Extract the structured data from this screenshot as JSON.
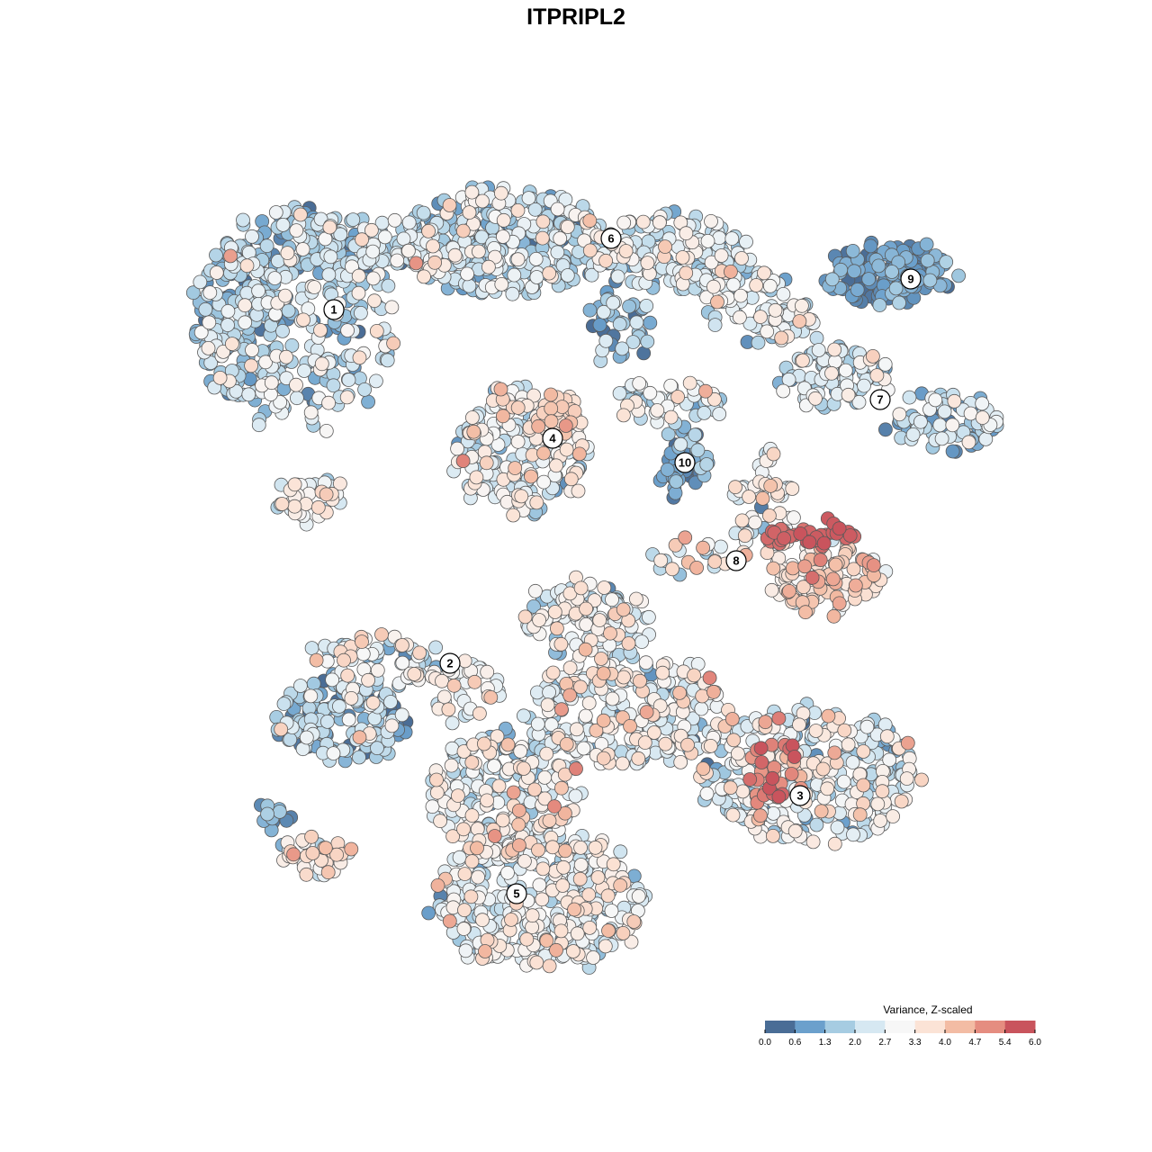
{
  "chart_data": {
    "type": "scatter",
    "title": "ITPRIPL2",
    "legend": {
      "title": "Variance, Z-scaled",
      "position": "bottom-right",
      "range": [
        0.0,
        6.0
      ],
      "ticks": [
        "0.0",
        "0.6",
        "1.3",
        "2.0",
        "2.7",
        "3.3",
        "4.0",
        "4.7",
        "5.4",
        "6.0"
      ],
      "colors": [
        "#4a6d96",
        "#6ba0cc",
        "#a6cce2",
        "#d6e8f2",
        "#f7f7f7",
        "#fbe3d6",
        "#f3bca4",
        "#e58d80",
        "#c9545d"
      ]
    },
    "point_style": {
      "stroke": "#5a5a5a"
    },
    "clusters": [
      {
        "id": "1",
        "label": "1"
      },
      {
        "id": "2",
        "label": "2"
      },
      {
        "id": "3",
        "label": "3"
      },
      {
        "id": "4",
        "label": "4"
      },
      {
        "id": "5",
        "label": "5"
      },
      {
        "id": "6",
        "label": "6"
      },
      {
        "id": "7",
        "label": "7"
      },
      {
        "id": "8",
        "label": "8"
      },
      {
        "id": "9",
        "label": "9"
      },
      {
        "id": "10",
        "label": "10"
      }
    ]
  }
}
